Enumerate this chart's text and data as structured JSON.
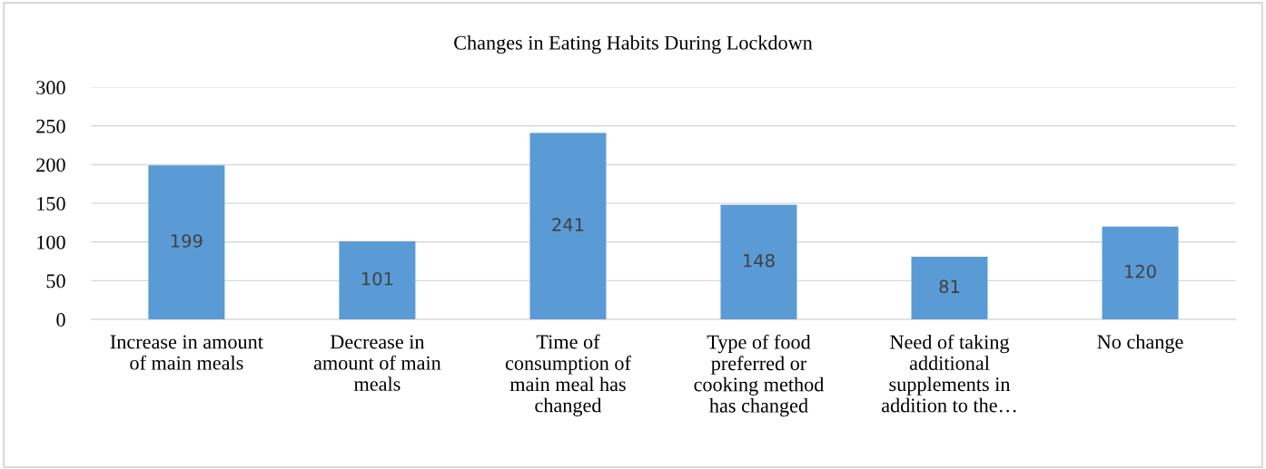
{
  "chart_data": {
    "type": "bar",
    "title": "Changes in Eating Habits During Lockdown",
    "categories": [
      "Increase in amount\nof main meals",
      "Decrease in\namount of main\nmeals",
      "Time of\nconsumption of\nmain meal has\nchanged",
      "Type of food\npreferred or\ncooking method\nhas changed",
      "Need of taking\nadditional\nsupplements in\naddition to the…",
      "No change"
    ],
    "values": [
      199,
      101,
      241,
      148,
      81,
      120
    ],
    "color": "#5b9bd5",
    "ylim": [
      0,
      300
    ],
    "yticks": [
      0,
      50,
      100,
      150,
      200,
      250,
      300
    ],
    "grid": "y",
    "data_labels": true
  }
}
